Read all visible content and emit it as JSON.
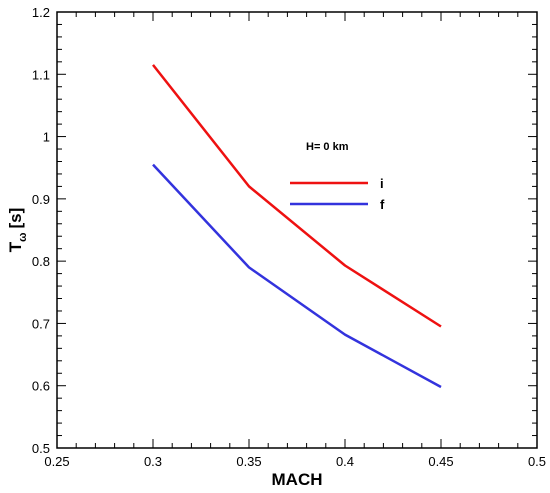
{
  "chart_data": {
    "type": "line",
    "xlabel": "MACH",
    "ylabel_main": "T",
    "ylabel_sub": "ω",
    "ylabel_unit": "[s]",
    "xlim": [
      0.25,
      0.5
    ],
    "ylim": [
      0.5,
      1.2
    ],
    "x_ticks": [
      0.25,
      0.3,
      0.35,
      0.4,
      0.45,
      0.5
    ],
    "x_tick_labels": [
      "0.25",
      "0.3",
      "0.35",
      "0.4",
      "0.45",
      "0.5"
    ],
    "y_ticks": [
      0.5,
      0.6,
      0.7,
      0.8,
      0.9,
      1.0,
      1.1,
      1.2
    ],
    "y_tick_labels": [
      "0.5",
      "0.6",
      "0.7",
      "0.8",
      "0.9",
      "1",
      "1.1",
      "1.2"
    ],
    "grid": false,
    "legend_position": "center-right",
    "annotation": "H= 0 km",
    "series": [
      {
        "name": "i",
        "color": "#ee1111",
        "x": [
          0.3,
          0.35,
          0.4,
          0.45
        ],
        "y": [
          1.115,
          0.92,
          0.793,
          0.695
        ]
      },
      {
        "name": "f",
        "color": "#3333dd",
        "x": [
          0.3,
          0.35,
          0.4,
          0.45
        ],
        "y": [
          0.955,
          0.79,
          0.682,
          0.598
        ]
      }
    ]
  }
}
